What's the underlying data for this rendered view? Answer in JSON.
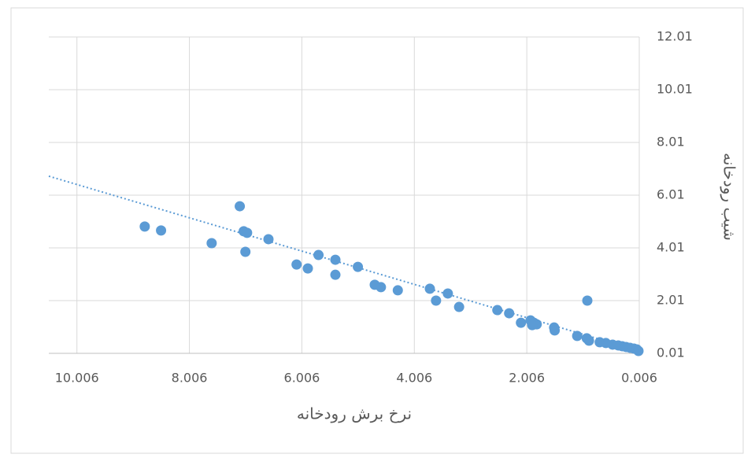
{
  "chart_data": {
    "type": "scatter",
    "x_label": "نرخ برش رودخانه",
    "y_label": "شیب رودخانه",
    "xlim": [
      10.506,
      0.006
    ],
    "xticks": [
      10.006,
      8.006,
      6.006,
      4.006,
      2.006,
      0.006
    ],
    "ylim": [
      0.01,
      12.01
    ],
    "yticks": [
      0.01,
      2.01,
      4.01,
      6.01,
      8.01,
      10.01,
      12.01
    ],
    "grid": true,
    "color": "#5b9bd5",
    "x": [
      8.8,
      8.51,
      7.61,
      7.11,
      7.04,
      6.98,
      7.01,
      6.6,
      6.1,
      5.9,
      5.71,
      5.41,
      5.41,
      5.01,
      4.71,
      4.6,
      4.3,
      3.73,
      3.62,
      3.41,
      3.21,
      2.53,
      2.32,
      2.11,
      1.94,
      1.88,
      1.83,
      1.91,
      1.52,
      1.51,
      1.11,
      0.94,
      0.93,
      0.9,
      0.71,
      0.6,
      0.48,
      0.38,
      0.31,
      0.24,
      0.17,
      0.1,
      0.05,
      0.02
    ],
    "values": [
      4.82,
      4.67,
      4.19,
      5.59,
      4.64,
      4.58,
      3.86,
      4.34,
      3.38,
      3.23,
      3.74,
      3.56,
      2.99,
      3.29,
      2.61,
      2.52,
      2.4,
      2.46,
      2.01,
      2.28,
      1.77,
      1.65,
      1.53,
      1.17,
      1.26,
      1.17,
      1.11,
      1.08,
      0.99,
      0.88,
      0.67,
      0.58,
      2.01,
      0.49,
      0.43,
      0.4,
      0.34,
      0.31,
      0.28,
      0.25,
      0.22,
      0.19,
      0.16,
      0.1
    ],
    "trendline": {
      "x": [
        10.506,
        0.006
      ],
      "values": [
        6.73,
        0.1
      ]
    }
  }
}
